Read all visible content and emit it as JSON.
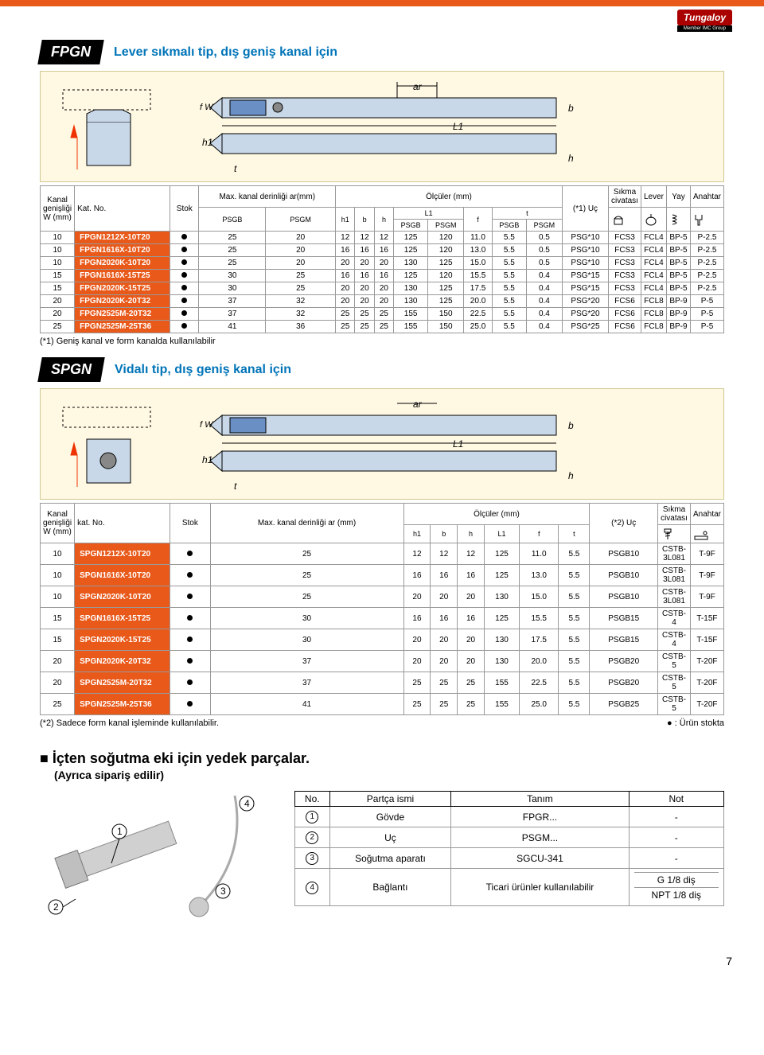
{
  "logo": {
    "brand": "Tungaloy",
    "sub": "Member IMC Group"
  },
  "fpgn": {
    "badge": "FPGN",
    "title": "Lever sıkmalı tip, dış geniş kanal için",
    "diagram_labels": {
      "ar": "ar",
      "L1": "L1",
      "f": "f",
      "W": "W",
      "h1": "h1",
      "t": "t",
      "b": "b",
      "h": "h"
    },
    "headers": {
      "kanal": "Kanal genişliği W (mm)",
      "kat": "Kat. No.",
      "stok": "Stok",
      "max": "Max. kanal derinliği ar(mm)",
      "olculer": "Ölçüler (mm)",
      "h1": "h1",
      "b": "b",
      "h": "h",
      "L1": "L1",
      "f": "f",
      "t": "t",
      "uc": "(*1) Uç",
      "sikma": "Sıkma civatası",
      "lever": "Lever",
      "yay": "Yay",
      "anahtar": "Anahtar",
      "psgb": "PSGB",
      "psgm": "PSGM"
    },
    "rows": [
      {
        "w": "10",
        "kat": "FPGN1212X-10T20",
        "ar_psgb": "25",
        "ar_psgm": "20",
        "h1": "12",
        "b": "12",
        "h": "12",
        "l1_psgb": "125",
        "l1_psgm": "120",
        "f": "11.0",
        "t_psgb": "5.5",
        "t_psgm": "0.5",
        "uc": "PSG*10",
        "sikma": "FCS3",
        "lever": "FCL4",
        "yay": "BP-5",
        "anahtar": "P-2.5"
      },
      {
        "w": "10",
        "kat": "FPGN1616X-10T20",
        "ar_psgb": "25",
        "ar_psgm": "20",
        "h1": "16",
        "b": "16",
        "h": "16",
        "l1_psgb": "125",
        "l1_psgm": "120",
        "f": "13.0",
        "t_psgb": "5.5",
        "t_psgm": "0.5",
        "uc": "PSG*10",
        "sikma": "FCS3",
        "lever": "FCL4",
        "yay": "BP-5",
        "anahtar": "P-2.5"
      },
      {
        "w": "10",
        "kat": "FPGN2020K-10T20",
        "ar_psgb": "25",
        "ar_psgm": "20",
        "h1": "20",
        "b": "20",
        "h": "20",
        "l1_psgb": "130",
        "l1_psgm": "125",
        "f": "15.0",
        "t_psgb": "5.5",
        "t_psgm": "0.5",
        "uc": "PSG*10",
        "sikma": "FCS3",
        "lever": "FCL4",
        "yay": "BP-5",
        "anahtar": "P-2.5"
      },
      {
        "w": "15",
        "kat": "FPGN1616X-15T25",
        "ar_psgb": "30",
        "ar_psgm": "25",
        "h1": "16",
        "b": "16",
        "h": "16",
        "l1_psgb": "125",
        "l1_psgm": "120",
        "f": "15.5",
        "t_psgb": "5.5",
        "t_psgm": "0.4",
        "uc": "PSG*15",
        "sikma": "FCS3",
        "lever": "FCL4",
        "yay": "BP-5",
        "anahtar": "P-2.5"
      },
      {
        "w": "15",
        "kat": "FPGN2020K-15T25",
        "ar_psgb": "30",
        "ar_psgm": "25",
        "h1": "20",
        "b": "20",
        "h": "20",
        "l1_psgb": "130",
        "l1_psgm": "125",
        "f": "17.5",
        "t_psgb": "5.5",
        "t_psgm": "0.4",
        "uc": "PSG*15",
        "sikma": "FCS3",
        "lever": "FCL4",
        "yay": "BP-5",
        "anahtar": "P-2.5"
      },
      {
        "w": "20",
        "kat": "FPGN2020K-20T32",
        "ar_psgb": "37",
        "ar_psgm": "32",
        "h1": "20",
        "b": "20",
        "h": "20",
        "l1_psgb": "130",
        "l1_psgm": "125",
        "f": "20.0",
        "t_psgb": "5.5",
        "t_psgm": "0.4",
        "uc": "PSG*20",
        "sikma": "FCS6",
        "lever": "FCL8",
        "yay": "BP-9",
        "anahtar": "P-5"
      },
      {
        "w": "20",
        "kat": "FPGN2525M-20T32",
        "ar_psgb": "37",
        "ar_psgm": "32",
        "h1": "25",
        "b": "25",
        "h": "25",
        "l1_psgb": "155",
        "l1_psgm": "150",
        "f": "22.5",
        "t_psgb": "5.5",
        "t_psgm": "0.4",
        "uc": "PSG*20",
        "sikma": "FCS6",
        "lever": "FCL8",
        "yay": "BP-9",
        "anahtar": "P-5"
      },
      {
        "w": "25",
        "kat": "FPGN2525M-25T36",
        "ar_psgb": "41",
        "ar_psgm": "36",
        "h1": "25",
        "b": "25",
        "h": "25",
        "l1_psgb": "155",
        "l1_psgm": "150",
        "f": "25.0",
        "t_psgb": "5.5",
        "t_psgm": "0.4",
        "uc": "PSG*25",
        "sikma": "FCS6",
        "lever": "FCL8",
        "yay": "BP-9",
        "anahtar": "P-5"
      }
    ],
    "note": "(*1) Geniş kanal ve form kanalda kullanılabilir"
  },
  "spgn": {
    "badge": "SPGN",
    "title": "Vidalı tip, dış geniş kanal için",
    "headers": {
      "kanal": "Kanal genişliği W (mm)",
      "kat": "kat. No.",
      "stok": "Stok",
      "max": "Max. kanal derinliği ar (mm)",
      "olculer": "Ölçüler (mm)",
      "h1": "h1",
      "b": "b",
      "h": "h",
      "L1": "L1",
      "f": "f",
      "t": "t",
      "uc": "(*2) Uç",
      "sikma": "Sıkma civatası",
      "anahtar": "Anahtar"
    },
    "rows": [
      {
        "w": "10",
        "kat": "SPGN1212X-10T20",
        "ar": "25",
        "h1": "12",
        "b": "12",
        "h": "12",
        "l1": "125",
        "f": "11.0",
        "t": "5.5",
        "uc": "PSGB10",
        "sikma": "CSTB-3L081",
        "anahtar": "T-9F"
      },
      {
        "w": "10",
        "kat": "SPGN1616X-10T20",
        "ar": "25",
        "h1": "16",
        "b": "16",
        "h": "16",
        "l1": "125",
        "f": "13.0",
        "t": "5.5",
        "uc": "PSGB10",
        "sikma": "CSTB-3L081",
        "anahtar": "T-9F"
      },
      {
        "w": "10",
        "kat": "SPGN2020K-10T20",
        "ar": "25",
        "h1": "20",
        "b": "20",
        "h": "20",
        "l1": "130",
        "f": "15.0",
        "t": "5.5",
        "uc": "PSGB10",
        "sikma": "CSTB-3L081",
        "anahtar": "T-9F"
      },
      {
        "w": "15",
        "kat": "SPGN1616X-15T25",
        "ar": "30",
        "h1": "16",
        "b": "16",
        "h": "16",
        "l1": "125",
        "f": "15.5",
        "t": "5.5",
        "uc": "PSGB15",
        "sikma": "CSTB-4",
        "anahtar": "T-15F"
      },
      {
        "w": "15",
        "kat": "SPGN2020K-15T25",
        "ar": "30",
        "h1": "20",
        "b": "20",
        "h": "20",
        "l1": "130",
        "f": "17.5",
        "t": "5.5",
        "uc": "PSGB15",
        "sikma": "CSTB-4",
        "anahtar": "T-15F"
      },
      {
        "w": "20",
        "kat": "SPGN2020K-20T32",
        "ar": "37",
        "h1": "20",
        "b": "20",
        "h": "20",
        "l1": "130",
        "f": "20.0",
        "t": "5.5",
        "uc": "PSGB20",
        "sikma": "CSTB-5",
        "anahtar": "T-20F"
      },
      {
        "w": "20",
        "kat": "SPGN2525M-20T32",
        "ar": "37",
        "h1": "25",
        "b": "25",
        "h": "25",
        "l1": "155",
        "f": "22.5",
        "t": "5.5",
        "uc": "PSGB20",
        "sikma": "CSTB-5",
        "anahtar": "T-20F"
      },
      {
        "w": "25",
        "kat": "SPGN2525M-25T36",
        "ar": "41",
        "h1": "25",
        "b": "25",
        "h": "25",
        "l1": "155",
        "f": "25.0",
        "t": "5.5",
        "uc": "PSGB25",
        "sikma": "CSTB-5",
        "anahtar": "T-20F"
      }
    ],
    "note": "(*2) Sadece form kanal işleminde kullanılabilir.",
    "legend": "● : Ürün stokta"
  },
  "spare": {
    "title": "■ İçten soğutma eki için yedek parçalar.",
    "sub": "(Ayrıca sipariş edilir)",
    "headers": {
      "no": "No.",
      "partca": "Partça ismi",
      "tanim": "Tanım",
      "not": "Not"
    },
    "rows": [
      {
        "n": "1",
        "p": "Gövde",
        "t": "FPGR...",
        "not": "-"
      },
      {
        "n": "2",
        "p": "Uç",
        "t": "PSGM...",
        "not": "-"
      },
      {
        "n": "3",
        "p": "Soğutma aparatı",
        "t": "SGCU-341",
        "not": "-"
      },
      {
        "n": "4",
        "p": "Bağlantı",
        "t": "Ticari ürünler kullanılabilir",
        "not": "G 1/8 diş\nNPT 1/8 diş"
      }
    ],
    "callouts": {
      "c1": "1",
      "c2": "2",
      "c3": "3",
      "c4": "4"
    }
  },
  "page_num": "7",
  "colors": {
    "orange": "#e8591a",
    "cream": "#fff9e3",
    "blue_text": "#0074b8",
    "logo_red": "#a00000"
  }
}
